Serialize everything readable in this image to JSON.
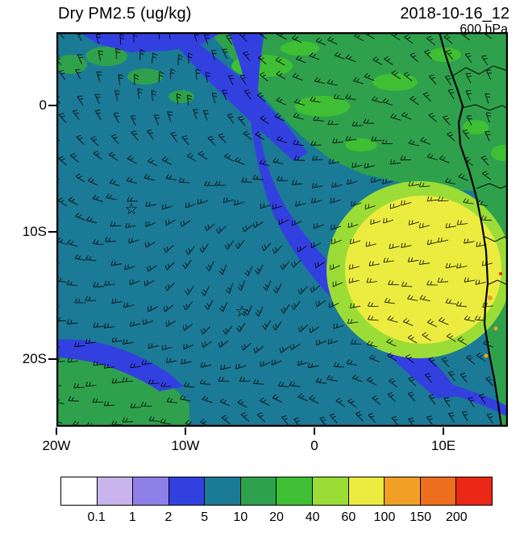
{
  "header": {
    "title": "Dry PM2.5 (ug/kg)",
    "datetime": "2018-10-16_12",
    "level": "600 hPa"
  },
  "axes": {
    "x_labels": [
      "20W",
      "10W",
      "0",
      "10E"
    ],
    "y_labels": [
      "0",
      "10S",
      "20S"
    ]
  },
  "colorbar": {
    "levels": [
      "0.1",
      "1",
      "2",
      "5",
      "10",
      "20",
      "40",
      "60",
      "100",
      "150",
      "200"
    ],
    "colors": [
      "#ffffff",
      "#c9b5ec",
      "#8f80e8",
      "#3340e0",
      "#1b7a96",
      "#2fa14d",
      "#3fbf33",
      "#9bdd36",
      "#ecec40",
      "#f2a025",
      "#ee6f1e",
      "#ea2815"
    ]
  },
  "chart_data": {
    "type": "heatmap",
    "title": "Dry PM2.5 (ug/kg)",
    "valid_time": "2018-10-16_12",
    "pressure_level": "600 hPa",
    "units": "ug/kg",
    "x_axis": {
      "tick_labels": [
        "20W",
        "10W",
        "0",
        "10E"
      ],
      "lon_range_deg": [
        -20,
        15
      ]
    },
    "y_axis": {
      "tick_labels": [
        "0",
        "10S",
        "20S"
      ],
      "lat_range_deg": [
        -25.5,
        5.5
      ]
    },
    "contour_levels": [
      0.1,
      1,
      2,
      5,
      10,
      20,
      40,
      60,
      100,
      150,
      200
    ],
    "palette": [
      "#ffffff",
      "#c9b5ec",
      "#8f80e8",
      "#3340e0",
      "#1b7a96",
      "#2fa14d",
      "#3fbf33",
      "#9bdd36",
      "#ecec40",
      "#f2a025",
      "#ee6f1e",
      "#ea2815"
    ],
    "field_summary": [
      {
        "region": "central and western South Atlantic background",
        "value_band": "5-10"
      },
      {
        "region": "smoke plume maximum offshore Angola near 10E 12S extending to coast",
        "value_band": "60-100"
      },
      {
        "region": "fringe ring around plume maximum",
        "value_band": "40-60"
      },
      {
        "region": "equatorial band, Gulf of Guinea and Congo basin (north and northeast)",
        "value_band": "10-20 with embedded 20-40 patches"
      },
      {
        "region": "clean diagonal tongue from about 5W 0S curving southeast to 8E 20S",
        "value_band": "2-5"
      },
      {
        "region": "narrow strip along northern map edge near 15W-5W",
        "value_band": "2-5"
      },
      {
        "region": "southwest corner patch near 20W 23S",
        "value_band": "10-20"
      },
      {
        "region": "isolated spots on Angola coast interior",
        "value_band": "100-200"
      }
    ],
    "overlays": {
      "wind_barbs": {
        "style": "black staffs with feather ticks",
        "coverage": "uniform grid over full map"
      },
      "markers": [
        {
          "symbol": "star",
          "lon_deg": -14.2,
          "lat_deg": -8.1
        },
        {
          "symbol": "star",
          "lon_deg": -5.6,
          "lat_deg": -16.1
        }
      ]
    },
    "map_features": {
      "coastline": "West and Central Africa coast from Gabon to Namibia on right side",
      "borders": "country borders drawn inland"
    }
  }
}
